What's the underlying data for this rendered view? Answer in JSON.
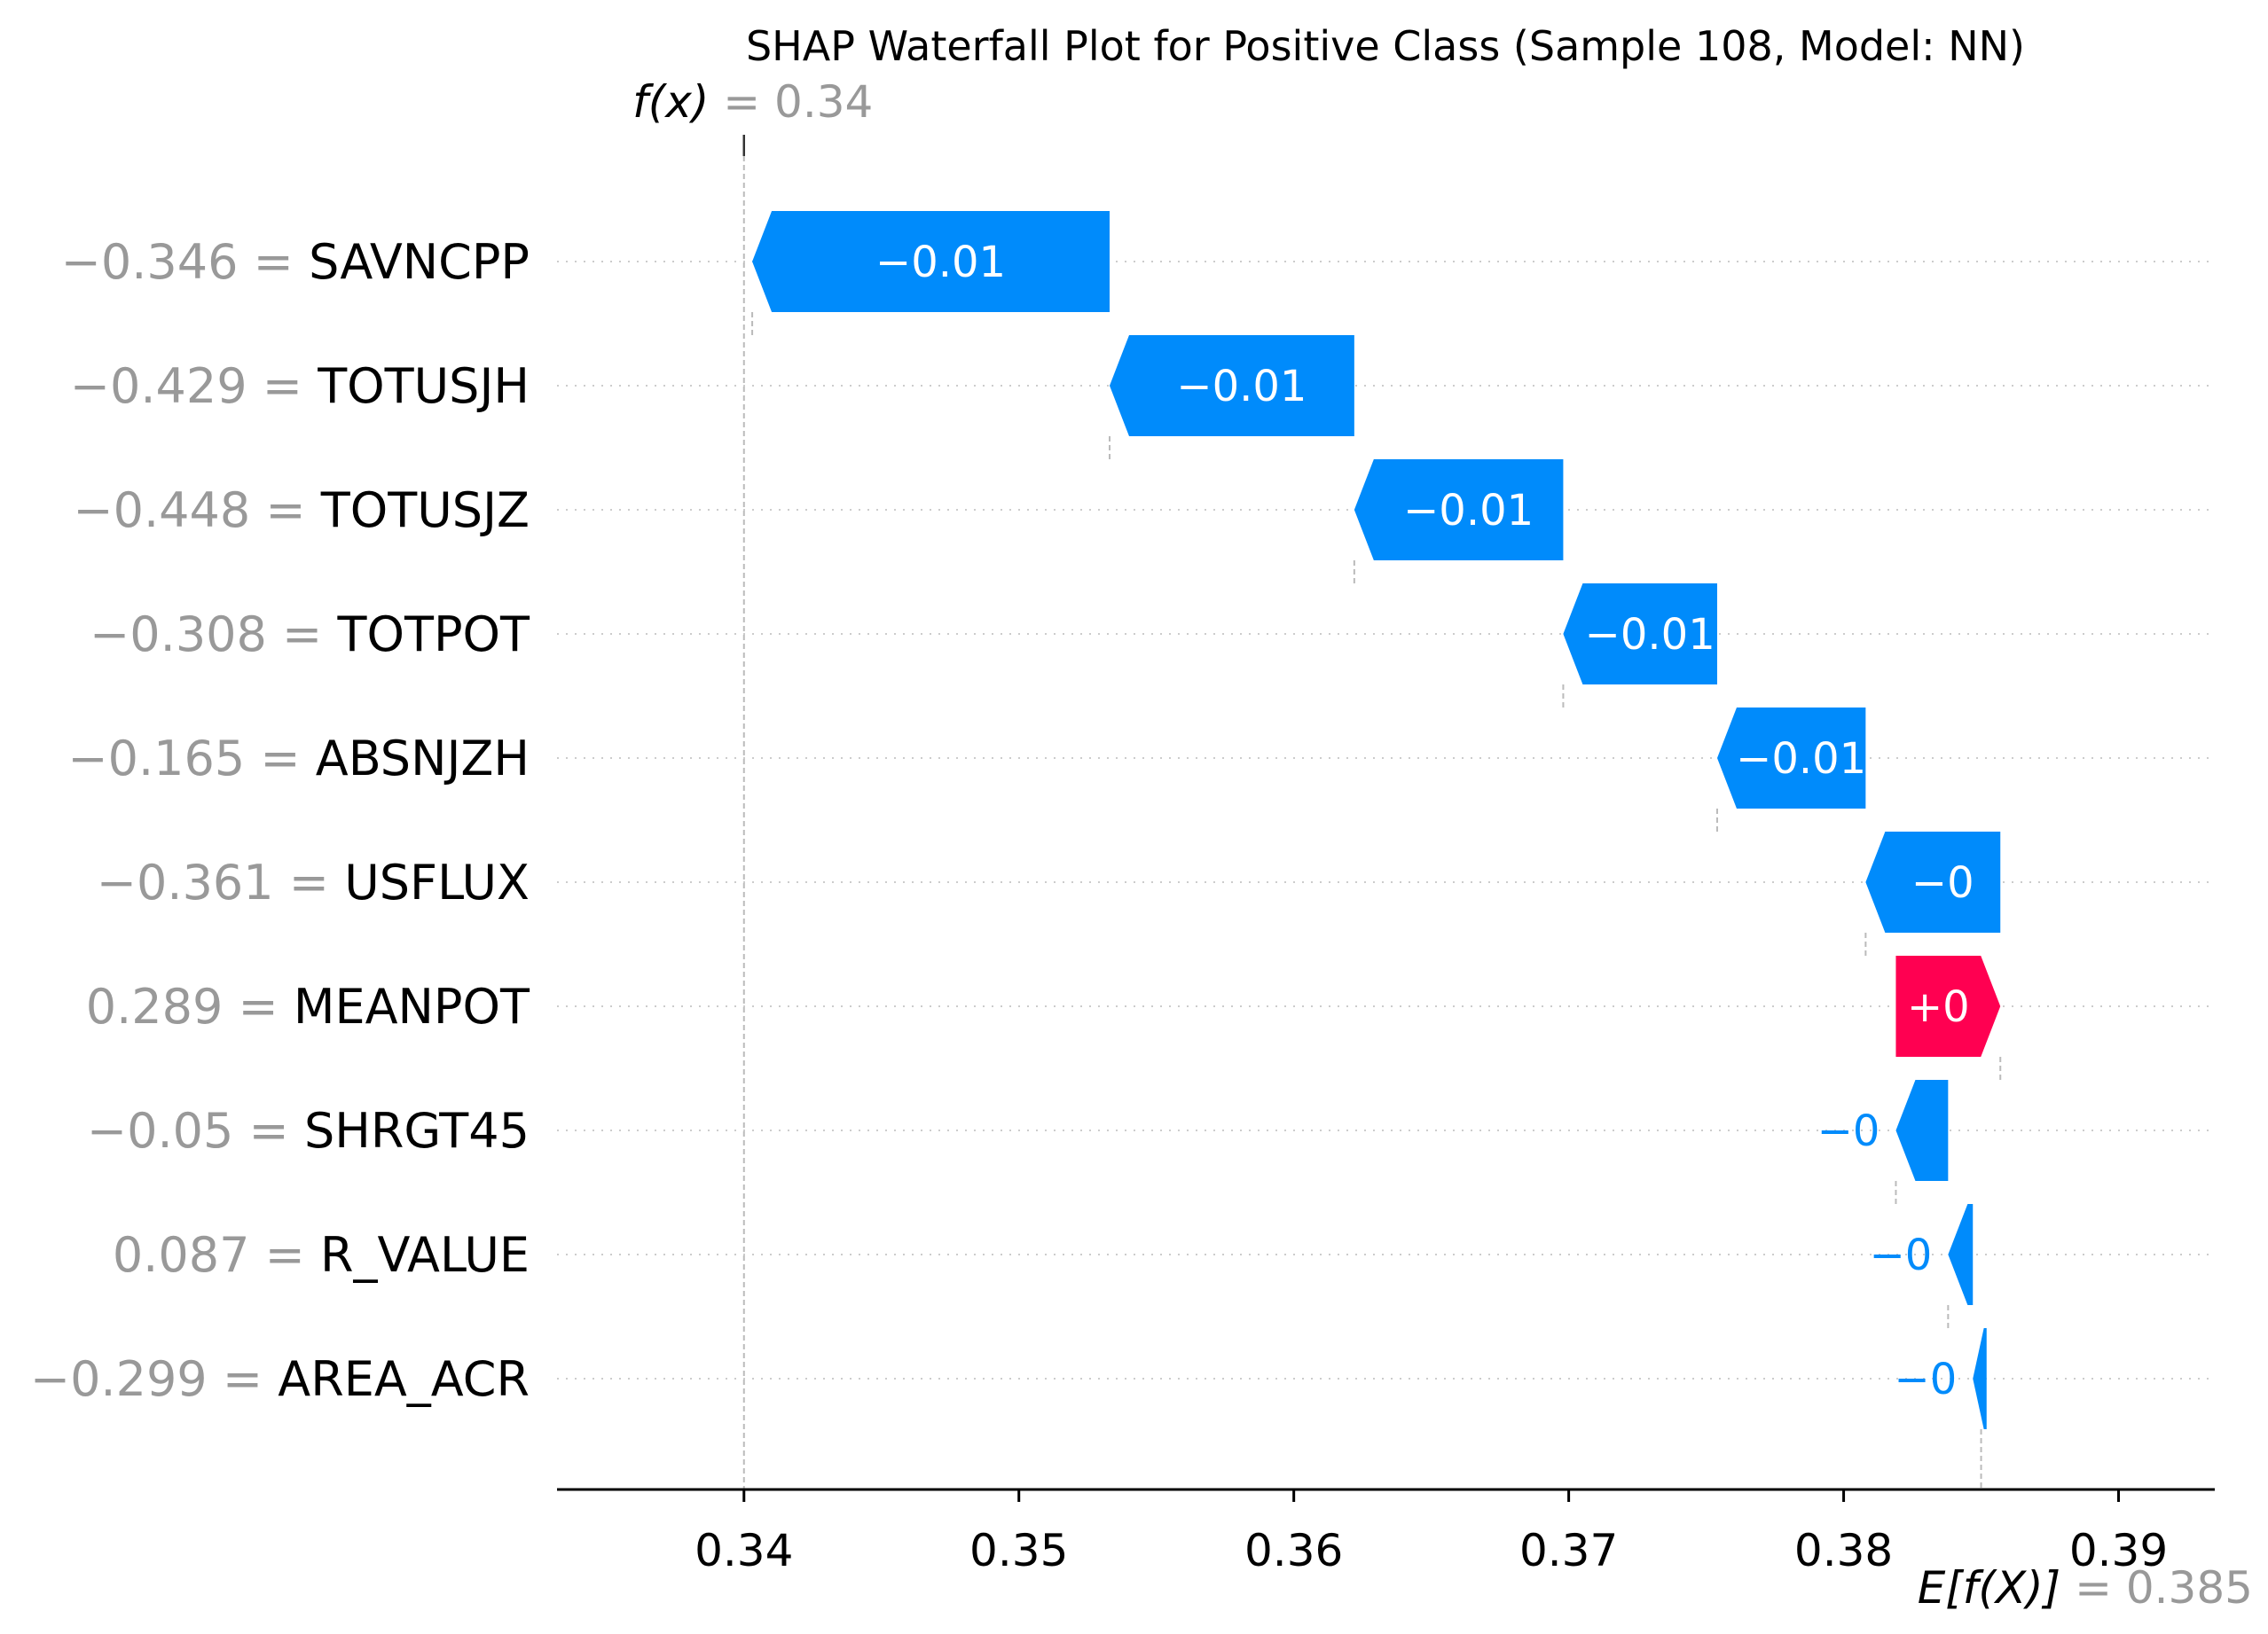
{
  "chart_data": {
    "type": "waterfall",
    "title": "SHAP Waterfall Plot for Positive Class (Sample 108, Model: NN)",
    "fx": {
      "label_main": "f(x)",
      "label_eq": "= 0.34",
      "value": 0.34
    },
    "efx": {
      "label_main": "E[f(X)]",
      "label_eq": "= 0.385",
      "value": 0.385
    },
    "xlim": [
      0.3332,
      0.3935
    ],
    "xticks": [
      {
        "value": 0.34,
        "label": "0.34"
      },
      {
        "value": 0.35,
        "label": "0.35"
      },
      {
        "value": 0.36,
        "label": "0.36"
      },
      {
        "value": 0.37,
        "label": "0.37"
      },
      {
        "value": 0.38,
        "label": "0.38"
      },
      {
        "value": 0.39,
        "label": "0.39"
      }
    ],
    "grid": "dotted-horizontal",
    "colors": {
      "positive": "#ff0051",
      "negative": "#008bfb",
      "guide": "#bbbbbb",
      "muted": "#999999"
    },
    "rows": [
      {
        "feature_value": "−0.346 =",
        "feature": "SAVNCPP",
        "left": 0.3403,
        "right": 0.3533,
        "sign": "negative",
        "label": "−0.01",
        "label_inside": true
      },
      {
        "feature_value": "−0.429 =",
        "feature": "TOTUSJH",
        "left": 0.3533,
        "right": 0.3622,
        "sign": "negative",
        "label": "−0.01",
        "label_inside": true
      },
      {
        "feature_value": "−0.448 =",
        "feature": "TOTUSJZ",
        "left": 0.3622,
        "right": 0.3698,
        "sign": "negative",
        "label": "−0.01",
        "label_inside": true
      },
      {
        "feature_value": "−0.308 =",
        "feature": "TOTPOT",
        "left": 0.3698,
        "right": 0.3754,
        "sign": "negative",
        "label": "−0.01",
        "label_inside": true
      },
      {
        "feature_value": "−0.165 =",
        "feature": "ABSNJZH",
        "left": 0.3754,
        "right": 0.3808,
        "sign": "negative",
        "label": "−0.01",
        "label_inside": true
      },
      {
        "feature_value": "−0.361 =",
        "feature": "USFLUX",
        "left": 0.3808,
        "right": 0.3857,
        "sign": "negative",
        "label": "−0",
        "label_inside": true
      },
      {
        "feature_value": "0.289 =",
        "feature": "MEANPOT",
        "left": 0.3819,
        "right": 0.3857,
        "sign": "positive",
        "label": "+0",
        "label_inside": true
      },
      {
        "feature_value": "−0.05 =",
        "feature": "SHRGT45",
        "left": 0.3819,
        "right": 0.3838,
        "sign": "negative",
        "label": "−0",
        "label_inside": false
      },
      {
        "feature_value": "0.087 =",
        "feature": "R_VALUE",
        "left": 0.3838,
        "right": 0.3847,
        "sign": "negative",
        "label": "−0",
        "label_inside": false
      },
      {
        "feature_value": "−0.299 =",
        "feature": "AREA_ACR",
        "left": 0.3847,
        "right": 0.3852,
        "sign": "negative",
        "label": "−0",
        "label_inside": false
      }
    ]
  }
}
